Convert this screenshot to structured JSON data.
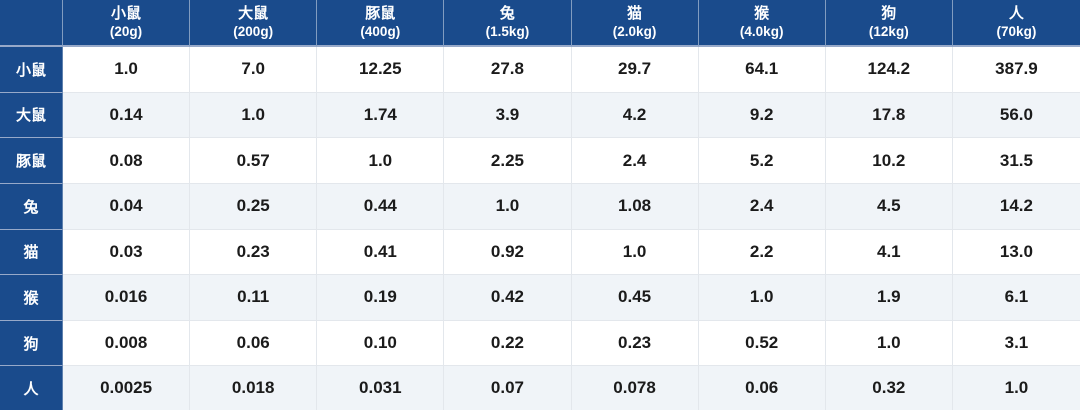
{
  "colors": {
    "header_blue": "#1A4B8C",
    "stripe_row": "#F0F4F8",
    "grid_line": "#E3E7EC",
    "value_text": "#1B1B1B",
    "header_text": "#FFFFFF"
  },
  "chart_data": {
    "type": "table",
    "corner_label": "",
    "columns": [
      {
        "key": "mouse",
        "species": "小鼠",
        "weight": "(20g)"
      },
      {
        "key": "rat",
        "species": "大鼠",
        "weight": "(200g)"
      },
      {
        "key": "guinea-pig",
        "species": "豚鼠",
        "weight": "(400g)"
      },
      {
        "key": "rabbit",
        "species": "兔",
        "weight": "(1.5kg)"
      },
      {
        "key": "cat",
        "species": "猫",
        "weight": "(2.0kg)"
      },
      {
        "key": "monkey",
        "species": "猴",
        "weight": "(4.0kg)"
      },
      {
        "key": "dog",
        "species": "狗",
        "weight": "(12kg)"
      },
      {
        "key": "human",
        "species": "人",
        "weight": "(70kg)"
      }
    ],
    "rows": [
      {
        "key": "mouse",
        "label": "小鼠",
        "values": [
          "1.0",
          "7.0",
          "12.25",
          "27.8",
          "29.7",
          "64.1",
          "124.2",
          "387.9"
        ]
      },
      {
        "key": "rat",
        "label": "大鼠",
        "values": [
          "0.14",
          "1.0",
          "1.74",
          "3.9",
          "4.2",
          "9.2",
          "17.8",
          "56.0"
        ]
      },
      {
        "key": "guinea-pig",
        "label": "豚鼠",
        "values": [
          "0.08",
          "0.57",
          "1.0",
          "2.25",
          "2.4",
          "5.2",
          "10.2",
          "31.5"
        ]
      },
      {
        "key": "rabbit",
        "label": "兔",
        "values": [
          "0.04",
          "0.25",
          "0.44",
          "1.0",
          "1.08",
          "2.4",
          "4.5",
          "14.2"
        ]
      },
      {
        "key": "cat",
        "label": "猫",
        "values": [
          "0.03",
          "0.23",
          "0.41",
          "0.92",
          "1.0",
          "2.2",
          "4.1",
          "13.0"
        ]
      },
      {
        "key": "monkey",
        "label": "猴",
        "values": [
          "0.016",
          "0.11",
          "0.19",
          "0.42",
          "0.45",
          "1.0",
          "1.9",
          "6.1"
        ]
      },
      {
        "key": "dog",
        "label": "狗",
        "values": [
          "0.008",
          "0.06",
          "0.10",
          "0.22",
          "0.23",
          "0.52",
          "1.0",
          "3.1"
        ]
      },
      {
        "key": "human",
        "label": "人",
        "values": [
          "0.0025",
          "0.018",
          "0.031",
          "0.07",
          "0.078",
          "0.06",
          "0.32",
          "1.0"
        ]
      }
    ]
  }
}
